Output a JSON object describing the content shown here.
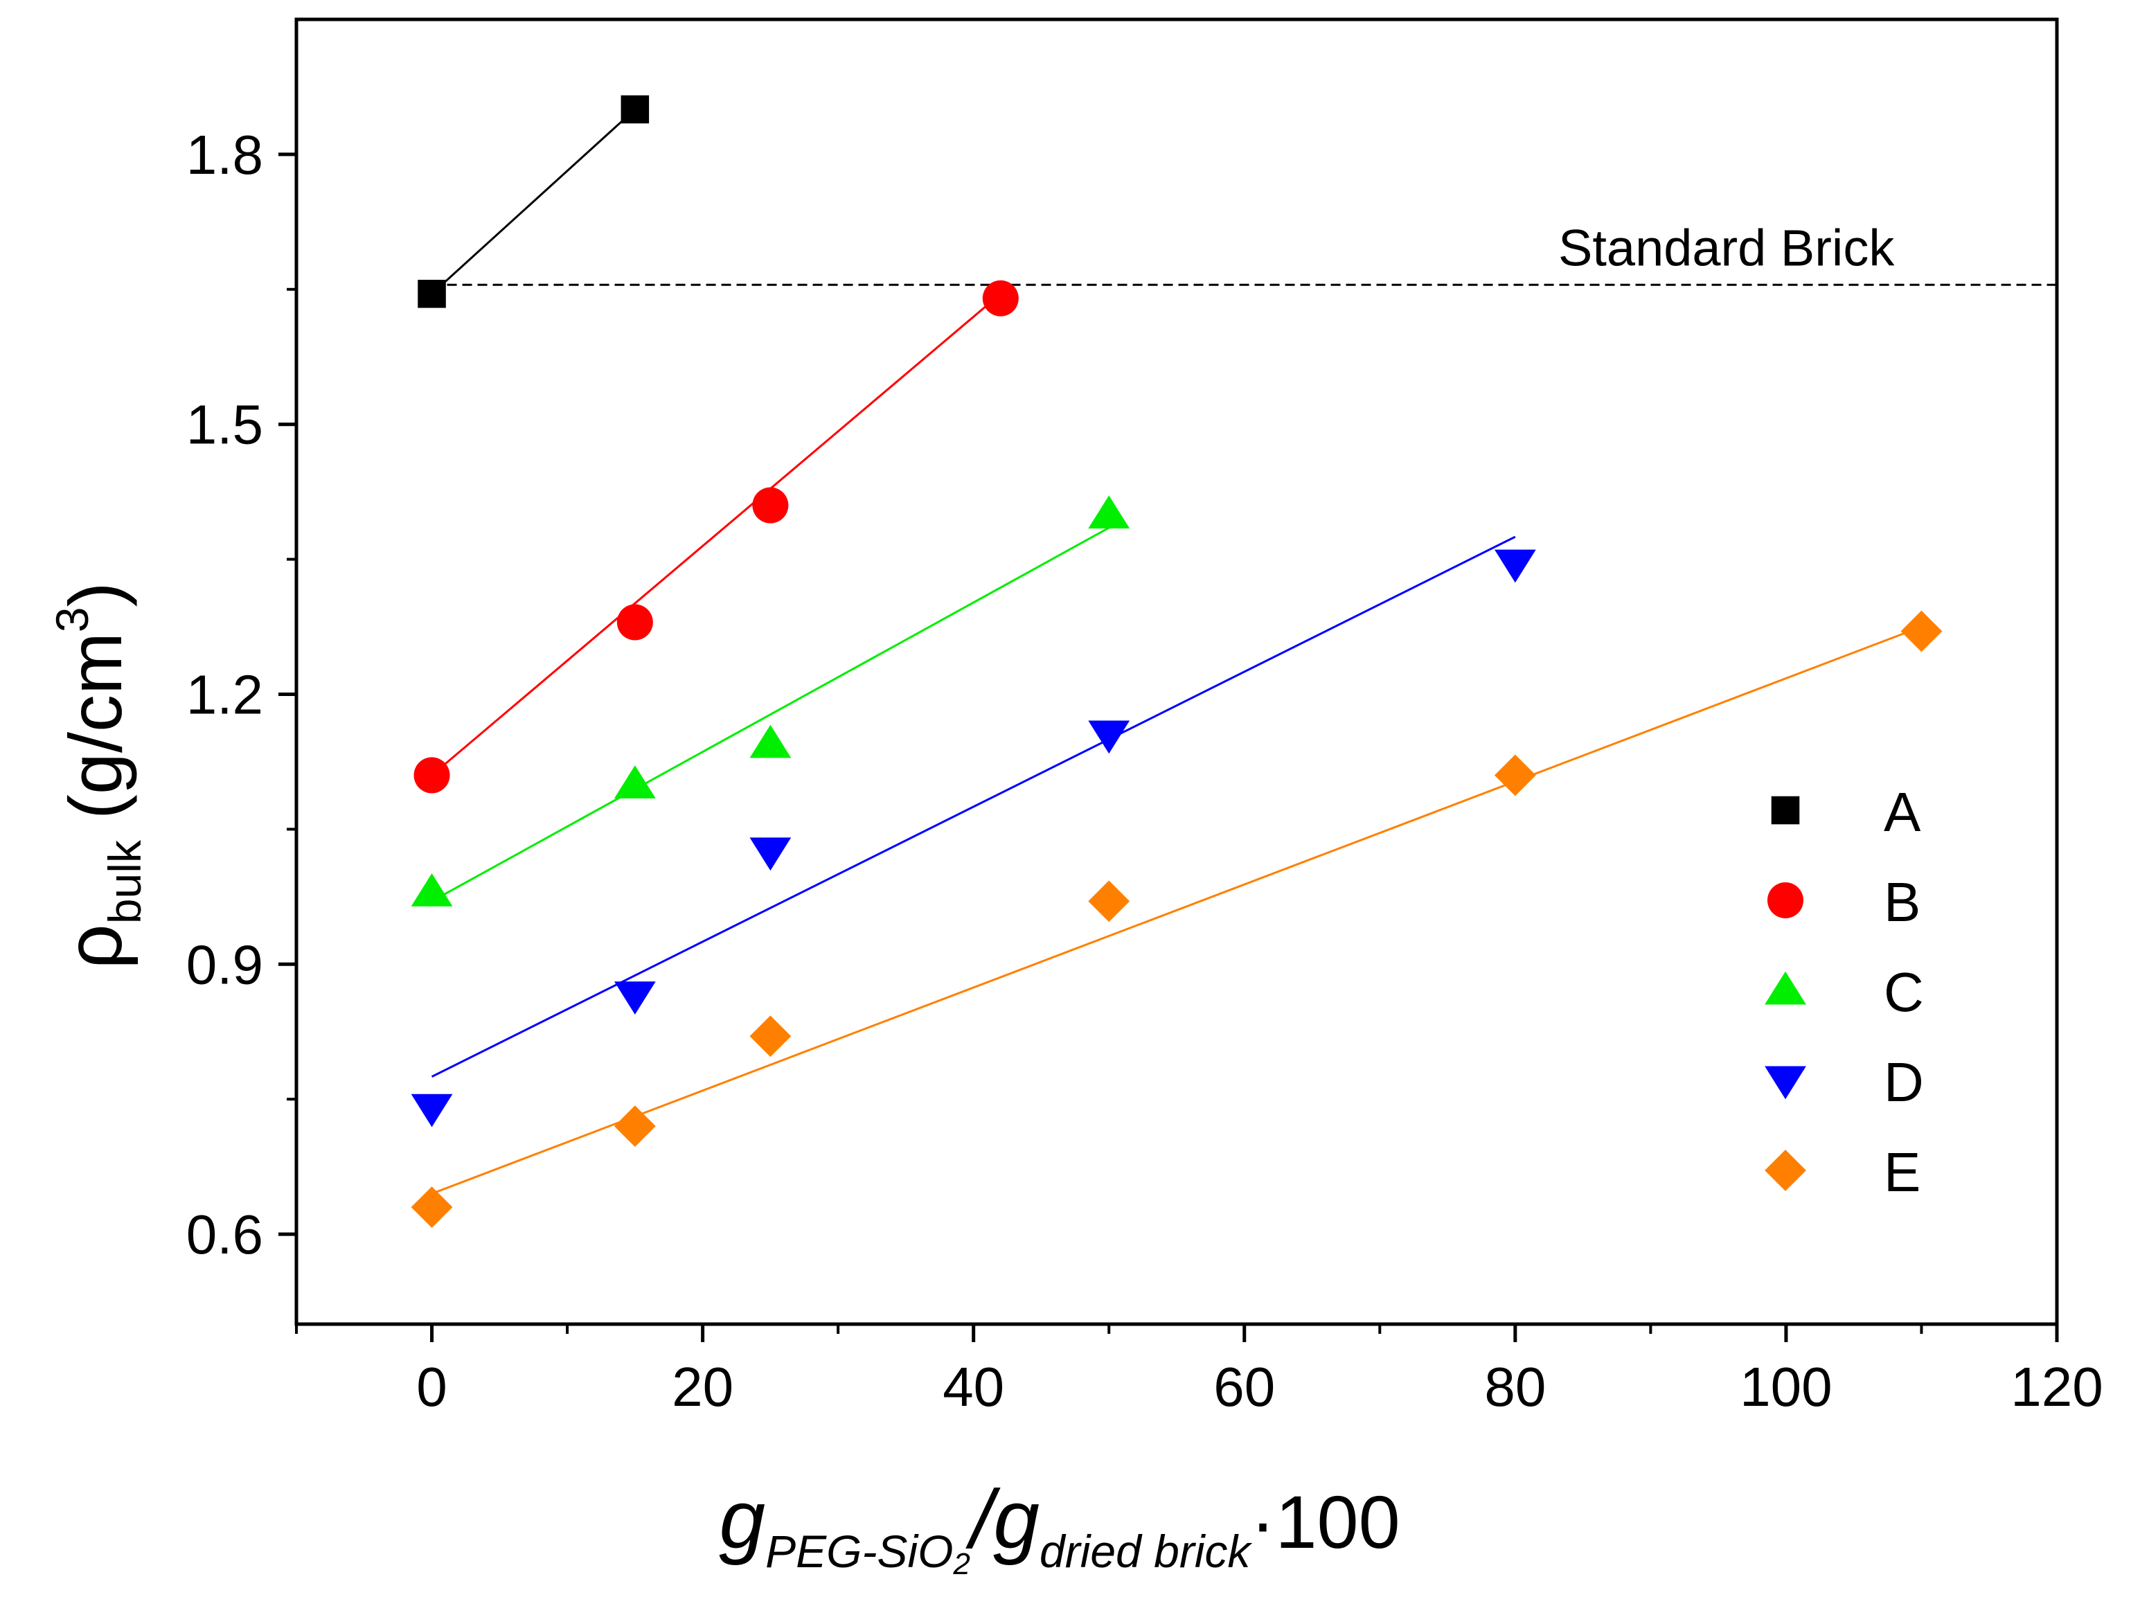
{
  "chart_data": {
    "type": "scatter",
    "title": "",
    "xlabel": {
      "main": "g",
      "sub1": "PEG-SiO",
      "sub1_subscript": "2",
      "slash": "/g",
      "sub2": "dried brick",
      "suffix": "·100"
    },
    "ylabel": {
      "main": "ρ",
      "sub": "bulk",
      "unit": " (g/cm",
      "sup": "3",
      "close": ")"
    },
    "xlim": [
      -10,
      120
    ],
    "ylim": [
      0.5,
      1.95
    ],
    "xticks": [
      0,
      20,
      40,
      60,
      80,
      100,
      120
    ],
    "xtick_labels": [
      "0",
      "20",
      "40",
      "60",
      "80",
      "100",
      "120"
    ],
    "yticks": [
      0.6,
      0.9,
      1.2,
      1.5,
      1.8
    ],
    "ytick_labels": [
      "0.6",
      "0.9",
      "1.2",
      "1.5",
      "1.8"
    ],
    "reference_line": {
      "label": "Standard Brick",
      "y": 1.655,
      "x_start": 0,
      "x_end": 120,
      "style": "dashed"
    },
    "legend_position": "center-right",
    "series": [
      {
        "name": "A",
        "marker": "square",
        "color": "#000000",
        "x": [
          0,
          15
        ],
        "y": [
          1.645,
          1.85
        ],
        "line": {
          "kind": "connect",
          "x": [
            0,
            15
          ],
          "y": [
            1.645,
            1.85
          ]
        }
      },
      {
        "name": "B",
        "marker": "circle",
        "color": "#ff0000",
        "x": [
          0,
          15,
          25,
          42
        ],
        "y": [
          1.11,
          1.28,
          1.41,
          1.64
        ],
        "line": {
          "kind": "fit",
          "x": [
            0,
            42
          ],
          "y": [
            1.11,
            1.645
          ]
        }
      },
      {
        "name": "C",
        "marker": "triangle-up",
        "color": "#00ee00",
        "x": [
          0,
          15,
          25,
          50
        ],
        "y": [
          0.98,
          1.1,
          1.145,
          1.4
        ],
        "line": {
          "kind": "fit",
          "x": [
            0,
            50
          ],
          "y": [
            0.97,
            1.385
          ]
        }
      },
      {
        "name": "D",
        "marker": "triangle-down",
        "color": "#0000ff",
        "x": [
          0,
          15,
          25,
          50,
          80
        ],
        "y": [
          0.74,
          0.865,
          1.025,
          1.155,
          1.345
        ],
        "line": {
          "kind": "fit",
          "x": [
            0,
            80
          ],
          "y": [
            0.775,
            1.375
          ]
        }
      },
      {
        "name": "E",
        "marker": "diamond",
        "color": "#ff8000",
        "x": [
          0,
          15,
          25,
          50,
          80,
          110
        ],
        "y": [
          0.63,
          0.72,
          0.82,
          0.97,
          1.11,
          1.27
        ],
        "line": {
          "kind": "fit",
          "x": [
            0,
            110
          ],
          "y": [
            0.645,
            1.275
          ]
        }
      }
    ]
  }
}
